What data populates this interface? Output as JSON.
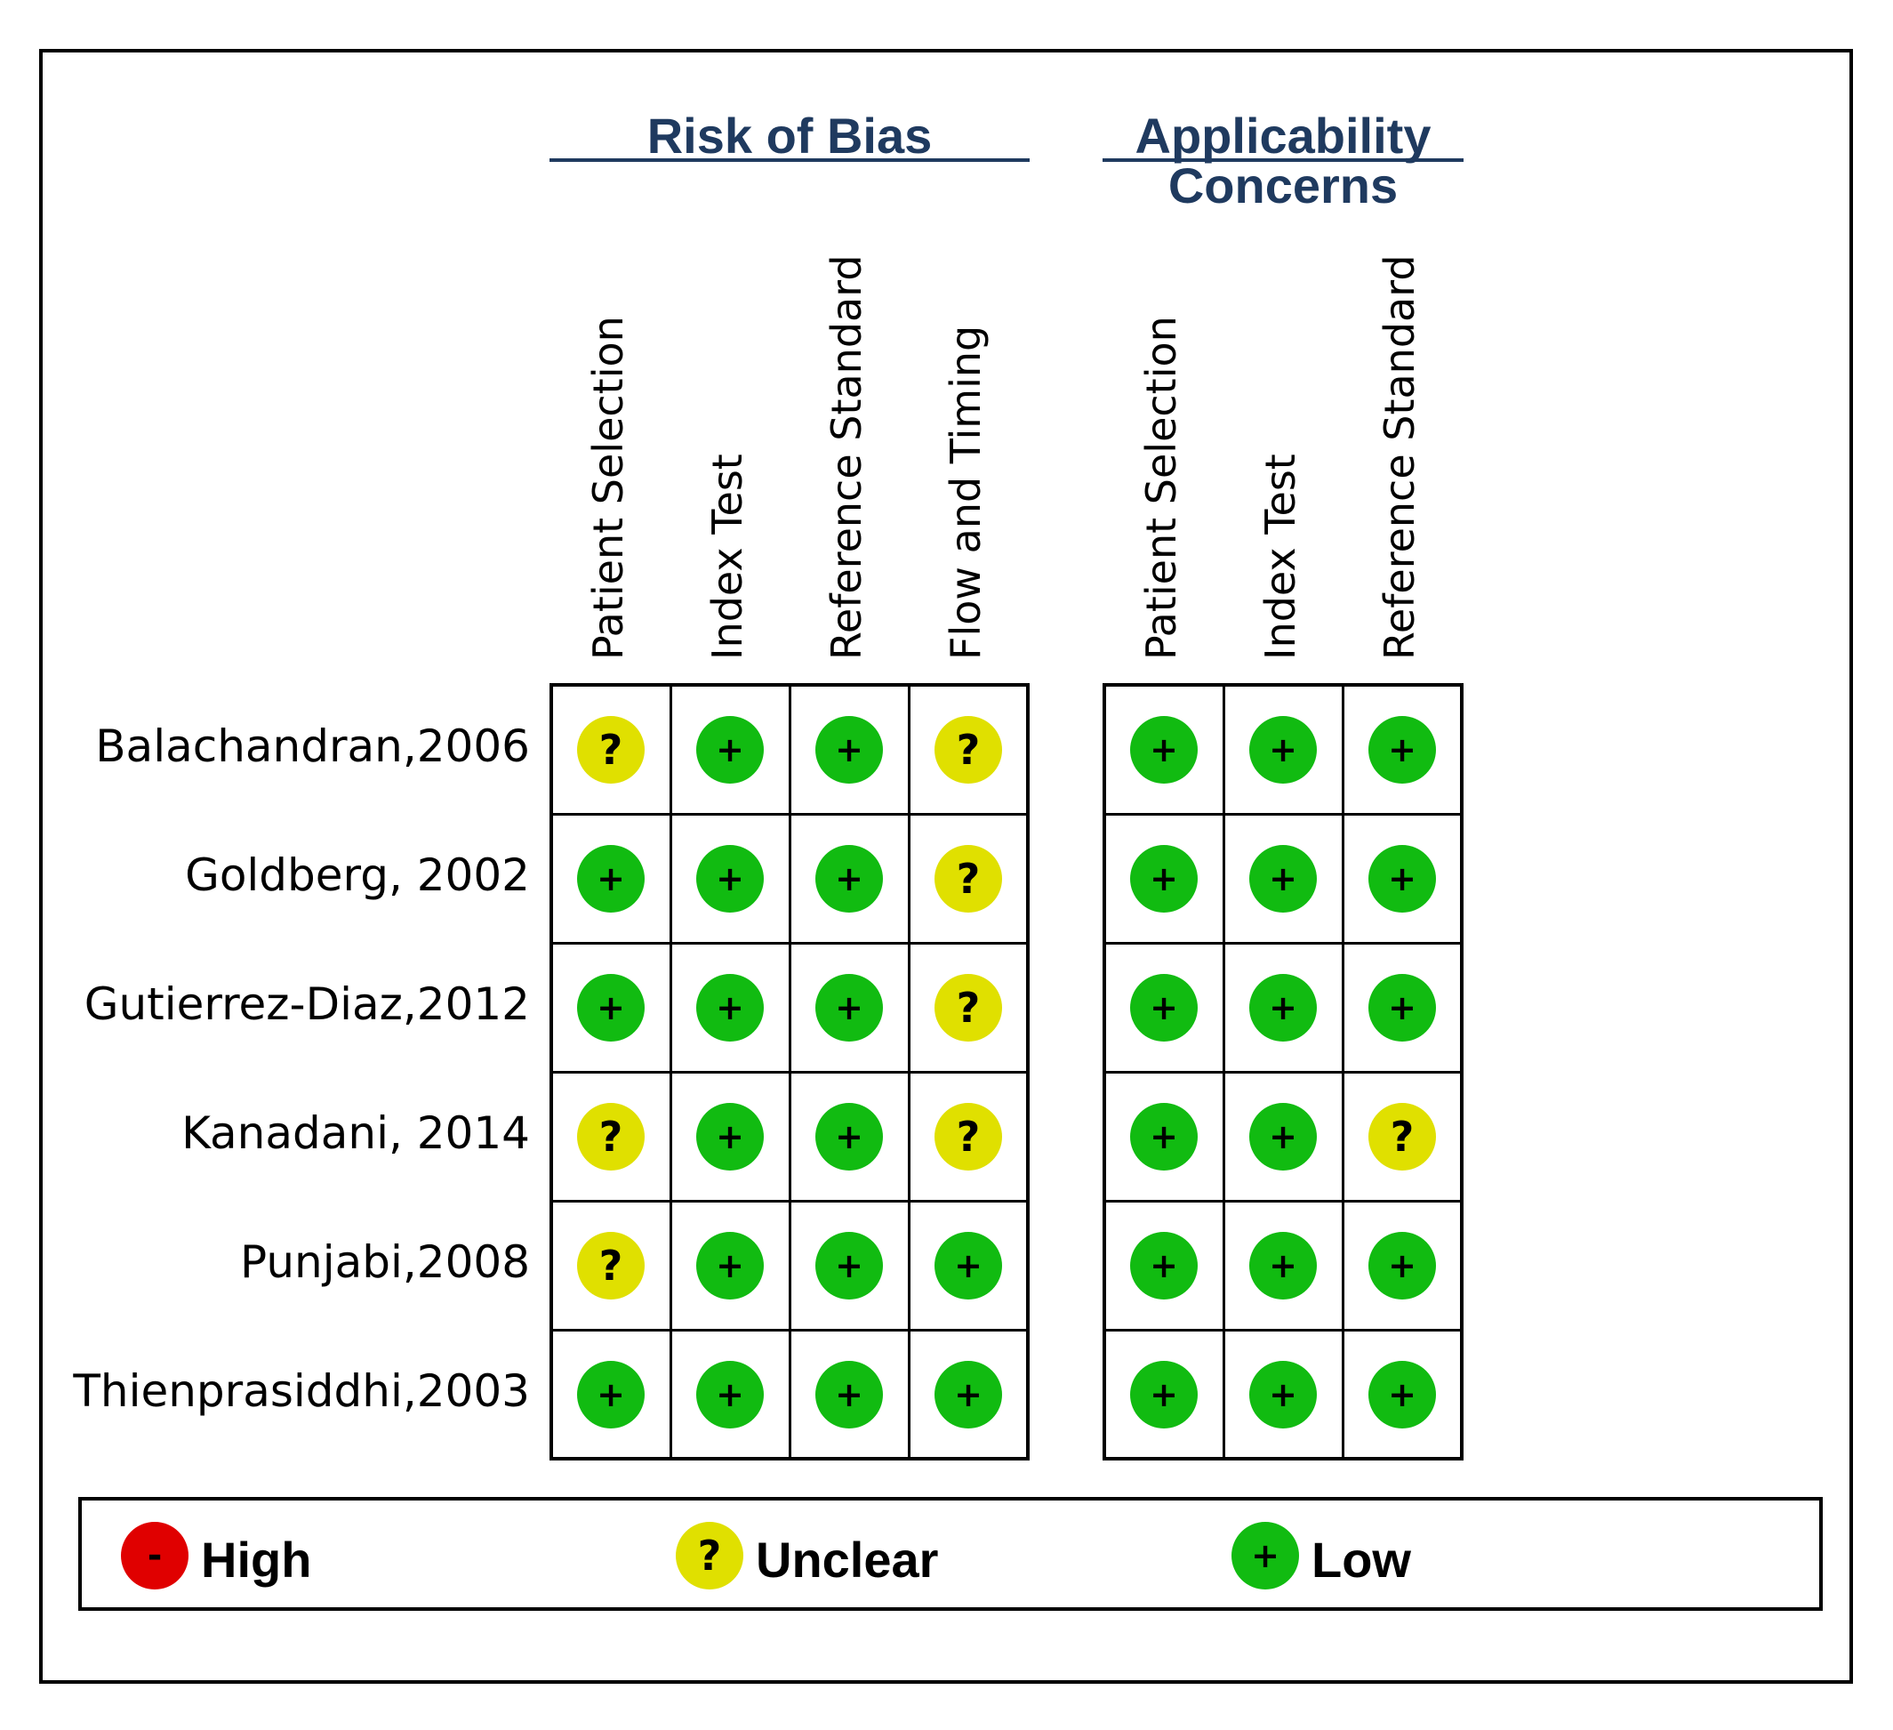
{
  "chart_data": {
    "type": "table",
    "groups": [
      {
        "title": "Risk of Bias",
        "columns": [
          "Patient Selection",
          "Index Test",
          "Reference Standard",
          "Flow and Timing"
        ]
      },
      {
        "title": "Applicability Concerns",
        "columns": [
          "Patient Selection",
          "Index Test",
          "Reference Standard"
        ]
      }
    ],
    "studies": [
      "Balachandran,2006",
      "Goldberg, 2002",
      "Gutierrez-Diaz,2012",
      "Kanadani, 2014",
      "Punjabi,2008",
      "Thienprasiddhi,2003"
    ],
    "ratings": [
      [
        [
          "unclear",
          "low",
          "low",
          "unclear"
        ],
        [
          "low",
          "low",
          "low"
        ]
      ],
      [
        [
          "low",
          "low",
          "low",
          "unclear"
        ],
        [
          "low",
          "low",
          "low"
        ]
      ],
      [
        [
          "low",
          "low",
          "low",
          "unclear"
        ],
        [
          "low",
          "low",
          "low"
        ]
      ],
      [
        [
          "unclear",
          "low",
          "low",
          "unclear"
        ],
        [
          "low",
          "low",
          "unclear"
        ]
      ],
      [
        [
          "unclear",
          "low",
          "low",
          "low"
        ],
        [
          "low",
          "low",
          "low"
        ]
      ],
      [
        [
          "low",
          "low",
          "low",
          "low"
        ],
        [
          "low",
          "low",
          "low"
        ]
      ]
    ],
    "symbols": {
      "high": "-",
      "unclear": "?",
      "low": "+"
    },
    "colors": {
      "high": "#e00000",
      "unclear": "#e0e000",
      "low": "#11bb11"
    },
    "legend": [
      {
        "key": "high",
        "label": "High"
      },
      {
        "key": "unclear",
        "label": "Unclear"
      },
      {
        "key": "low",
        "label": "Low"
      }
    ]
  }
}
